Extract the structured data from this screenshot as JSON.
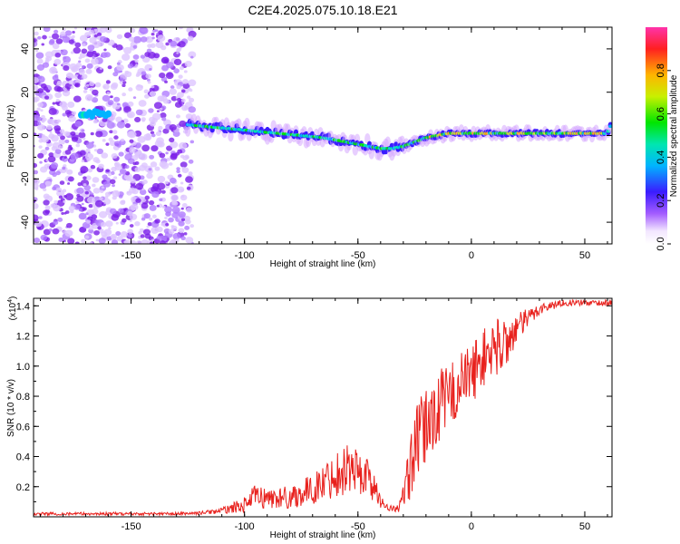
{
  "chart_data": [
    {
      "type": "heatmap",
      "title": "C2E4.2025.075.10.18.E21",
      "xlabel": "Height of straight line (km)",
      "ylabel": "Frequency (Hz)",
      "xlim": [
        -193,
        62
      ],
      "ylim": [
        -50,
        50
      ],
      "xticks": [
        "-150",
        "-100",
        "-50",
        "0",
        "50"
      ],
      "yticks": [
        "-40",
        "-20",
        "0",
        "20",
        "40"
      ],
      "colorbar": {
        "label": "Normalized spectral amplitude",
        "range": [
          0,
          1
        ],
        "ticks": [
          "0.0",
          "0.2",
          "0.4",
          "0.6",
          "0.8"
        ]
      },
      "trace": {
        "x": [
          -125,
          -115,
          -105,
          -95,
          -85,
          -75,
          -65,
          -55,
          -45,
          -40,
          -35,
          -30,
          -25,
          -20,
          -15,
          -10,
          0,
          10,
          20,
          30,
          40,
          50,
          55,
          60,
          62
        ],
        "freq": [
          5,
          4,
          3,
          2,
          1,
          0,
          -1,
          -3,
          -5,
          -6,
          -6,
          -5,
          -3,
          -1,
          0,
          1,
          1,
          1,
          1,
          1,
          1,
          1,
          1,
          1,
          6
        ]
      }
    },
    {
      "type": "line",
      "xlabel": "Height of straight line (km)",
      "ylabel": "SNR (10 * v/v)",
      "y_multiplier": "(x10^4)",
      "y_multiplier_base": "(x10",
      "y_multiplier_exp": "4",
      "xlim": [
        -193,
        62
      ],
      "ylim": [
        0,
        1.45
      ],
      "xticks": [
        "-150",
        "-100",
        "-50",
        "0",
        "50"
      ],
      "yticks": [
        "0.2",
        "0.4",
        "0.6",
        "0.8",
        "1.0",
        "1.2",
        "1.4"
      ],
      "color": "#e8211d",
      "series": [
        {
          "x": [
            -193,
            -170,
            -150,
            -130,
            -120,
            -110,
            -100,
            -95,
            -90,
            -80,
            -70,
            -60,
            -55,
            -50,
            -45,
            -40,
            -35,
            -32,
            -30,
            -28,
            -25,
            -20,
            -15,
            -10,
            -5,
            0,
            5,
            10,
            15,
            20,
            30,
            40,
            50,
            62
          ],
          "mean": [
            0.02,
            0.02,
            0.02,
            0.02,
            0.025,
            0.04,
            0.08,
            0.14,
            0.12,
            0.13,
            0.18,
            0.28,
            0.33,
            0.3,
            0.26,
            0.1,
            0.05,
            0.06,
            0.12,
            0.25,
            0.45,
            0.6,
            0.72,
            0.8,
            0.88,
            0.95,
            1.05,
            1.12,
            1.15,
            1.25,
            1.38,
            1.42,
            1.42,
            1.42
          ],
          "amp": [
            0.01,
            0.01,
            0.01,
            0.01,
            0.01,
            0.02,
            0.05,
            0.08,
            0.07,
            0.08,
            0.1,
            0.15,
            0.18,
            0.16,
            0.14,
            0.04,
            0.02,
            0.03,
            0.1,
            0.18,
            0.25,
            0.28,
            0.25,
            0.22,
            0.22,
            0.2,
            0.2,
            0.2,
            0.18,
            0.1,
            0.04,
            0.02,
            0.02,
            0.02
          ]
        }
      ]
    }
  ]
}
